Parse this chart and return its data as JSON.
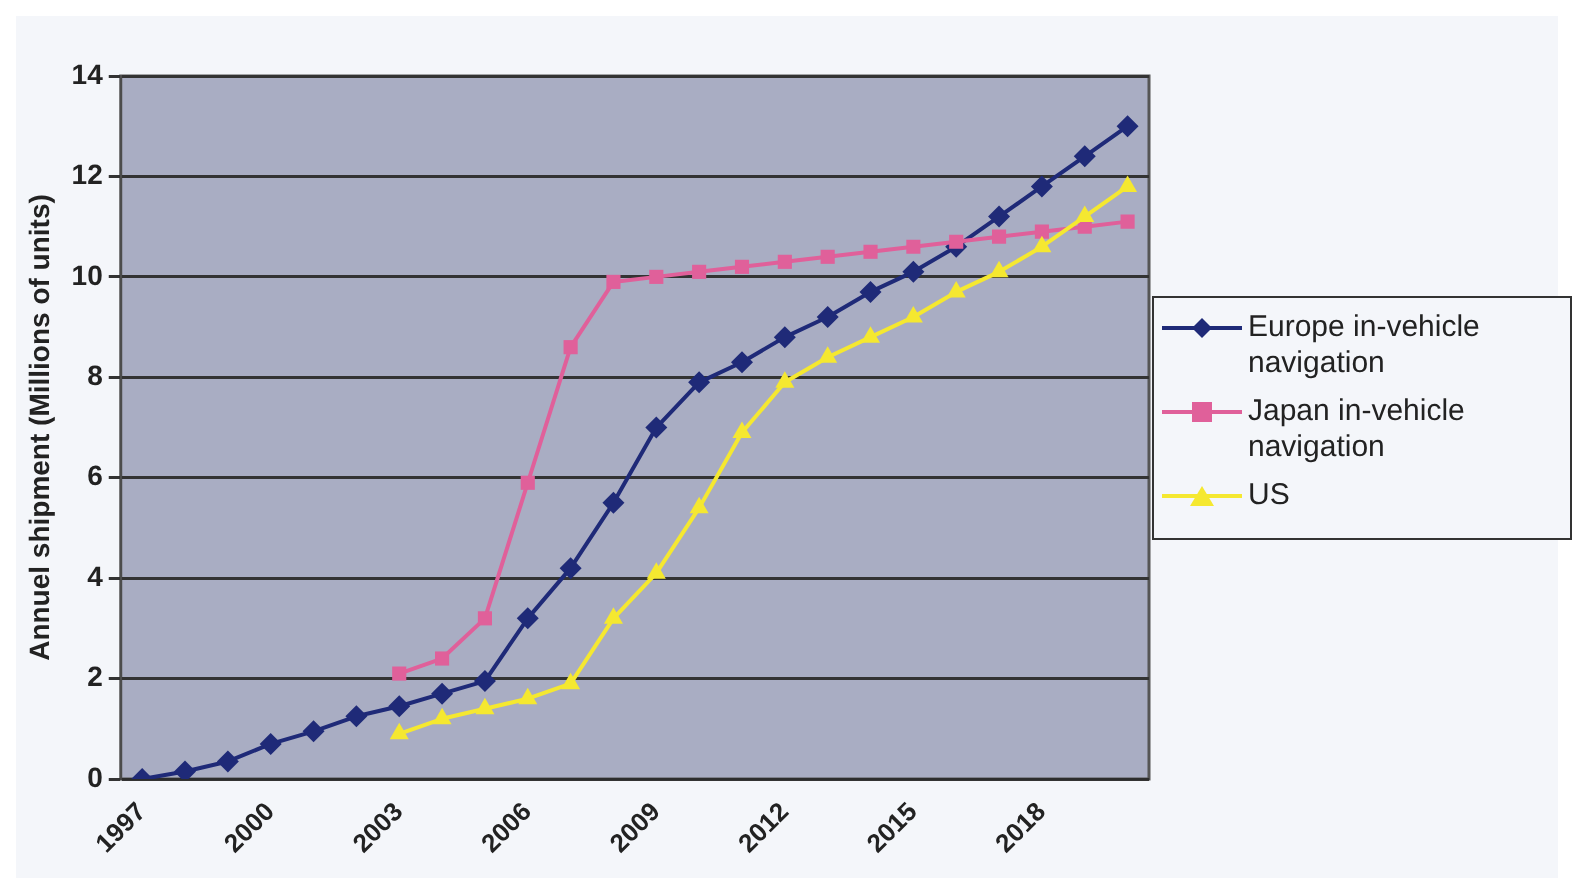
{
  "chart_data": {
    "type": "line",
    "ylabel": "Annuel shipment (Millions of units)",
    "categories": [
      "1997",
      null,
      null,
      "2000",
      null,
      null,
      "2003",
      null,
      null,
      "2006",
      null,
      null,
      "2009",
      null,
      null,
      "2012",
      null,
      null,
      "2015",
      null,
      null,
      "2018",
      null,
      null
    ],
    "series": [
      {
        "name": "Europe in-vehicle navigation",
        "color": "#1f2a78",
        "marker": "diamond",
        "values": [
          0,
          0.15,
          0.35,
          0.7,
          0.95,
          1.25,
          1.45,
          1.7,
          1.95,
          3.2,
          4.2,
          5.5,
          7.0,
          7.9,
          8.3,
          8.8,
          9.2,
          9.7,
          10.1,
          10.6,
          11.2,
          11.8,
          12.4,
          13.0
        ]
      },
      {
        "name": "Japan in-vehicle navigation",
        "color": "#e0609a",
        "marker": "square",
        "values": [
          null,
          null,
          null,
          null,
          null,
          null,
          2.1,
          2.4,
          3.2,
          5.9,
          8.6,
          9.9,
          10.0,
          10.1,
          10.2,
          10.3,
          10.4,
          10.5,
          10.6,
          10.7,
          10.8,
          10.9,
          11.0,
          11.1
        ]
      },
      {
        "name": "US",
        "color": "#f5e830",
        "marker": "triangle",
        "values": [
          null,
          null,
          null,
          null,
          null,
          null,
          0.9,
          1.2,
          1.4,
          1.6,
          1.9,
          3.2,
          4.1,
          5.4,
          6.9,
          7.9,
          8.4,
          8.8,
          9.2,
          9.7,
          10.1,
          10.6,
          11.2,
          11.8
        ]
      }
    ],
    "ylim": [
      0,
      14
    ],
    "yticks": [
      0,
      2,
      4,
      6,
      8,
      10,
      12,
      14
    ],
    "grid": "y",
    "legend": "right",
    "line_style": "solid"
  }
}
